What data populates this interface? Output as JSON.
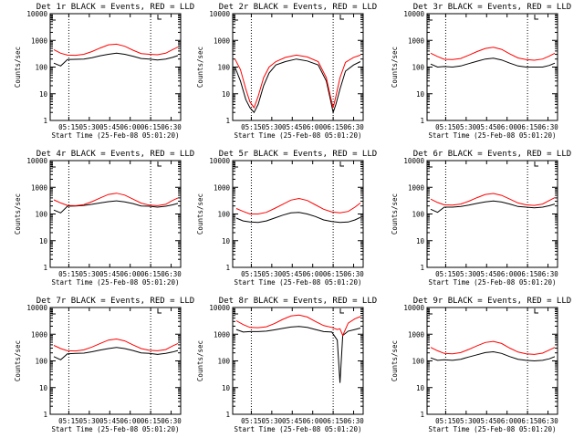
{
  "figure": {
    "xlabel": "Start Time (25-Feb-08 05:01:20)",
    "ylabel": "Counts/sec",
    "x_tick_labels": [
      "05:15",
      "05:30",
      "05:45",
      "06:00",
      "06:15",
      "06:30"
    ],
    "y_tick_labels": [
      "1",
      "10",
      "100",
      "1000",
      "10000"
    ]
  },
  "colors": {
    "events": "#000000",
    "lld": "#ff0000",
    "axes": "#000000",
    "background": "#ffffff"
  },
  "chart_data": [
    {
      "type": "line",
      "title": "Det 1r BLACK = Events, RED = LLD",
      "yscale": "log",
      "ylim": [
        1,
        10000
      ],
      "xlim": [
        "05:01:20",
        "06:37:00"
      ],
      "x": [
        "05:04",
        "05:09",
        "05:14",
        "05:20",
        "05:26",
        "05:32",
        "05:38",
        "05:44",
        "05:50",
        "05:56",
        "06:02",
        "06:08",
        "06:14",
        "06:20",
        "06:26",
        "06:31",
        "06:35"
      ],
      "series": [
        {
          "name": "BLACK = Events",
          "values": [
            140,
            110,
            190,
            195,
            200,
            225,
            265,
            300,
            330,
            300,
            255,
            210,
            200,
            185,
            200,
            230,
            270
          ]
        },
        {
          "name": "RED = LLD",
          "values": [
            450,
            330,
            280,
            275,
            300,
            380,
            520,
            680,
            720,
            600,
            430,
            320,
            300,
            290,
            330,
            450,
            560
          ]
        }
      ]
    },
    {
      "type": "line",
      "title": "Det 2r BLACK = Events, RED = LLD",
      "yscale": "log",
      "ylim": [
        1,
        10000
      ],
      "xlim": [
        "05:01:20",
        "06:37:00"
      ],
      "x": [
        "05:03",
        "05:07",
        "05:11",
        "05:14",
        "05:17",
        "05:20",
        "05:24",
        "05:28",
        "05:33",
        "05:40",
        "05:48",
        "05:56",
        "06:04",
        "06:10",
        "06:13",
        "06:15",
        "06:17",
        "06:20",
        "06:24",
        "06:30",
        "06:35"
      ],
      "series": [
        {
          "name": "BLACK = Events",
          "values": [
            100,
            30,
            6,
            3,
            2,
            4,
            20,
            60,
            120,
            160,
            200,
            170,
            120,
            30,
            6,
            2,
            4,
            15,
            70,
            120,
            160
          ]
        },
        {
          "name": "RED = LLD",
          "values": [
            200,
            80,
            15,
            5,
            3,
            8,
            40,
            100,
            160,
            230,
            280,
            240,
            160,
            40,
            8,
            3,
            8,
            40,
            150,
            230,
            280
          ]
        }
      ]
    },
    {
      "type": "line",
      "title": "Det 3r BLACK = Events, RED = LLD",
      "yscale": "log",
      "ylim": [
        1,
        10000
      ],
      "xlim": [
        "05:01:20",
        "06:37:00"
      ],
      "x": [
        "05:04",
        "05:09",
        "05:14",
        "05:20",
        "05:26",
        "05:32",
        "05:38",
        "05:44",
        "05:50",
        "05:56",
        "06:02",
        "06:08",
        "06:14",
        "06:20",
        "06:26",
        "06:31",
        "06:35"
      ],
      "series": [
        {
          "name": "BLACK = Events",
          "values": [
            130,
            100,
            105,
            100,
            110,
            135,
            165,
            200,
            215,
            185,
            140,
            110,
            100,
            100,
            100,
            115,
            140
          ]
        },
        {
          "name": "RED = LLD",
          "values": [
            330,
            250,
            195,
            190,
            210,
            280,
            380,
            500,
            550,
            460,
            310,
            220,
            190,
            180,
            200,
            260,
            330
          ]
        }
      ]
    },
    {
      "type": "line",
      "title": "Det 4r BLACK = Events, RED = LLD",
      "yscale": "log",
      "ylim": [
        1,
        10000
      ],
      "xlim": [
        "05:01:20",
        "06:37:00"
      ],
      "x": [
        "05:04",
        "05:09",
        "05:14",
        "05:20",
        "05:26",
        "05:32",
        "05:38",
        "05:44",
        "05:50",
        "05:56",
        "06:02",
        "06:08",
        "06:14",
        "06:20",
        "06:26",
        "06:31",
        "06:35"
      ],
      "series": [
        {
          "name": "BLACK = Events",
          "values": [
            140,
            110,
            195,
            200,
            210,
            230,
            260,
            290,
            310,
            285,
            245,
            200,
            195,
            180,
            195,
            220,
            250
          ]
        },
        {
          "name": "RED = LLD",
          "values": [
            340,
            260,
            210,
            205,
            225,
            290,
            400,
            540,
            600,
            510,
            360,
            255,
            215,
            205,
            230,
            320,
            400
          ]
        }
      ]
    },
    {
      "type": "line",
      "title": "Det 5r BLACK = Events, RED = LLD",
      "yscale": "log",
      "ylim": [
        1,
        10000
      ],
      "xlim": [
        "05:01:20",
        "06:37:00"
      ],
      "x": [
        "05:04",
        "05:09",
        "05:14",
        "05:20",
        "05:26",
        "05:32",
        "05:38",
        "05:44",
        "05:50",
        "05:56",
        "06:02",
        "06:08",
        "06:14",
        "06:20",
        "06:26",
        "06:31",
        "06:35"
      ],
      "series": [
        {
          "name": "BLACK = Events",
          "values": [
            70,
            55,
            50,
            48,
            55,
            70,
            90,
            110,
            115,
            100,
            80,
            60,
            52,
            48,
            50,
            60,
            75
          ]
        },
        {
          "name": "RED = LLD",
          "values": [
            160,
            125,
            100,
            100,
            115,
            160,
            230,
            330,
            380,
            320,
            220,
            150,
            120,
            110,
            125,
            180,
            260
          ]
        }
      ]
    },
    {
      "type": "line",
      "title": "Det 6r BLACK = Events, RED = LLD",
      "yscale": "log",
      "ylim": [
        1,
        10000
      ],
      "xlim": [
        "05:01:20",
        "06:37:00"
      ],
      "x": [
        "05:04",
        "05:09",
        "05:14",
        "05:20",
        "05:26",
        "05:32",
        "05:38",
        "05:44",
        "05:50",
        "05:56",
        "06:02",
        "06:08",
        "06:14",
        "06:20",
        "06:26",
        "06:31",
        "06:35"
      ],
      "series": [
        {
          "name": "BLACK = Events",
          "values": [
            150,
            115,
            180,
            180,
            190,
            215,
            250,
            285,
            305,
            280,
            235,
            190,
            180,
            170,
            180,
            205,
            235
          ]
        },
        {
          "name": "RED = LLD",
          "values": [
            360,
            270,
            220,
            215,
            235,
            300,
            410,
            540,
            590,
            500,
            360,
            260,
            220,
            210,
            235,
            320,
            410
          ]
        }
      ]
    },
    {
      "type": "line",
      "title": "Det 7r BLACK = Events, RED = LLD",
      "yscale": "log",
      "ylim": [
        1,
        10000
      ],
      "xlim": [
        "05:01:20",
        "06:37:00"
      ],
      "x": [
        "05:04",
        "05:09",
        "05:14",
        "05:20",
        "05:26",
        "05:32",
        "05:38",
        "05:44",
        "05:50",
        "05:56",
        "06:02",
        "06:08",
        "06:14",
        "06:20",
        "06:26",
        "06:31",
        "06:35"
      ],
      "series": [
        {
          "name": "BLACK = Events",
          "values": [
            145,
            110,
            185,
            190,
            195,
            220,
            255,
            290,
            320,
            290,
            245,
            200,
            190,
            175,
            190,
            215,
            245
          ]
        },
        {
          "name": "RED = LLD",
          "values": [
            380,
            290,
            240,
            235,
            260,
            330,
            450,
            600,
            660,
            560,
            400,
            290,
            250,
            240,
            265,
            360,
            450
          ]
        }
      ]
    },
    {
      "type": "line",
      "title": "Det 8r BLACK = Events, RED = LLD",
      "yscale": "log",
      "ylim": [
        1,
        10000
      ],
      "xlim": [
        "05:01:20",
        "06:37:00"
      ],
      "x": [
        "05:04",
        "05:09",
        "05:14",
        "05:20",
        "05:26",
        "05:32",
        "05:38",
        "05:44",
        "05:50",
        "05:56",
        "06:02",
        "06:08",
        "06:14",
        "06:18",
        "06:20",
        "06:22",
        "06:26",
        "06:31",
        "06:35"
      ],
      "series": [
        {
          "name": "BLACK = Events",
          "values": [
            1500,
            1200,
            1250,
            1250,
            1300,
            1450,
            1650,
            1850,
            1950,
            1800,
            1500,
            1250,
            1200,
            600,
            15,
            900,
            1300,
            1500,
            1700
          ]
        },
        {
          "name": "RED = LLD",
          "values": [
            3200,
            2300,
            1800,
            1750,
            1900,
            2500,
            3600,
            4800,
            5200,
            4400,
            3000,
            2100,
            1800,
            1500,
            1600,
            900,
            2600,
            3800,
            4600
          ]
        }
      ]
    },
    {
      "type": "line",
      "title": "Det 9r BLACK = Events, RED = LLD",
      "yscale": "log",
      "ylim": [
        1,
        10000
      ],
      "xlim": [
        "05:01:20",
        "06:37:00"
      ],
      "x": [
        "05:04",
        "05:09",
        "05:14",
        "05:20",
        "05:26",
        "05:32",
        "05:38",
        "05:44",
        "05:50",
        "05:56",
        "06:02",
        "06:08",
        "06:14",
        "06:20",
        "06:26",
        "06:31",
        "06:35"
      ],
      "series": [
        {
          "name": "BLACK = Events",
          "values": [
            130,
            105,
            110,
            105,
            115,
            140,
            170,
            205,
            220,
            190,
            145,
            115,
            105,
            100,
            105,
            120,
            145
          ]
        },
        {
          "name": "RED = LLD",
          "values": [
            320,
            240,
            190,
            185,
            205,
            270,
            370,
            490,
            540,
            450,
            300,
            215,
            185,
            175,
            195,
            255,
            320
          ]
        }
      ]
    }
  ]
}
